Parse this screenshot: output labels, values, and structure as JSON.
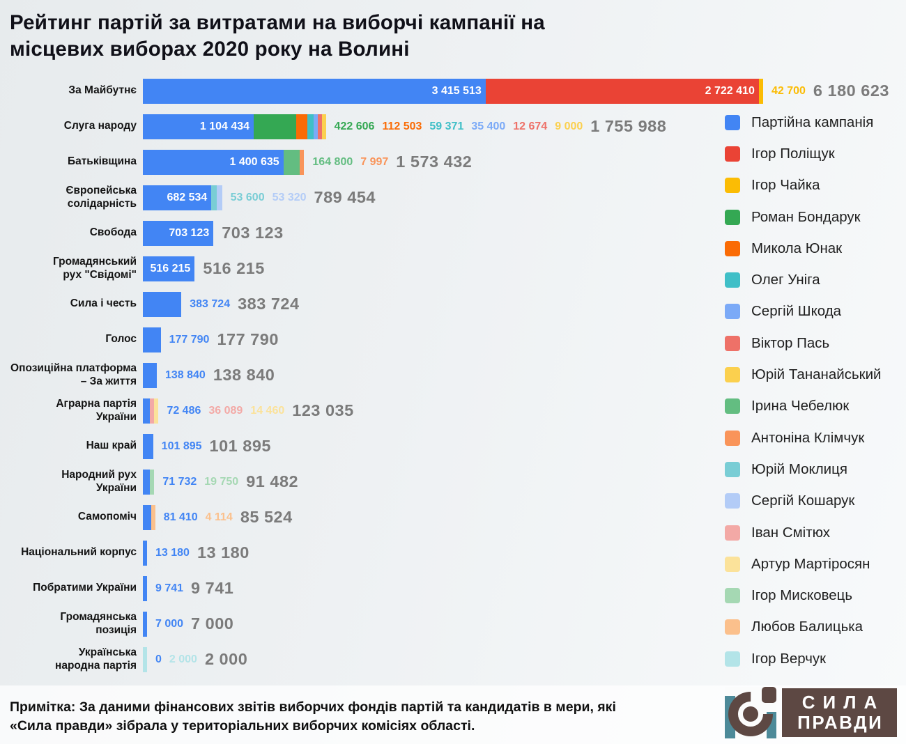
{
  "title": "Рейтинг партій за витратами на виборчі кампанії на\nмісцевих виборах 2020 року на Волині",
  "note": "Примітка: За даними фінансових звітів виборчих фондів партій та кандидатів в мери, які\n«Сила правди» зібрала у територіальних виборчих комісіях області.",
  "logo": {
    "line1": "СИЛА",
    "line2": "ПРАВДИ",
    "brand_brown": "#5d4843",
    "brand_teal": "#4d8a99"
  },
  "chart_data": {
    "type": "bar",
    "orientation": "horizontal",
    "stacked": true,
    "max_value": 6180623,
    "legend_position": "right",
    "legend": [
      {
        "label": "Партійна кампанія",
        "color": "#4285f4"
      },
      {
        "label": "Ігор Поліщук",
        "color": "#ea4335"
      },
      {
        "label": "Ігор Чайка",
        "color": "#fbbc04"
      },
      {
        "label": "Роман Бондарук",
        "color": "#34a853"
      },
      {
        "label": "Микола Юнак",
        "color": "#fa6b05"
      },
      {
        "label": "Олег Уніга",
        "color": "#3fbfc7"
      },
      {
        "label": "Сергій Шкода",
        "color": "#7baaf7"
      },
      {
        "label": "Віктор Пась",
        "color": "#ee7168"
      },
      {
        "label": "Юрій Тананайський",
        "color": "#fbd04e"
      },
      {
        "label": "Ірина Чебелюк",
        "color": "#63bd81"
      },
      {
        "label": "Антоніна Клімчук",
        "color": "#f9945a"
      },
      {
        "label": "Юрій Моклиця",
        "color": "#79cdd5"
      },
      {
        "label": "Сергій Кошарук",
        "color": "#b3ccf7"
      },
      {
        "label": "Іван Смітюх",
        "color": "#f3a9a6"
      },
      {
        "label": "Артур Мартіросян",
        "color": "#fbe29a"
      },
      {
        "label": "Ігор Мисковець",
        "color": "#a5d8b3"
      },
      {
        "label": "Любов Балицька",
        "color": "#fbc08c"
      },
      {
        "label": "Ігор Верчук",
        "color": "#b3e4e8"
      }
    ],
    "rows": [
      {
        "party": "За Майбутнє",
        "total": 6180623,
        "total_label": "6 180 623",
        "segments": [
          {
            "name": "Партійна кампанія",
            "value": 3415513,
            "label": "3 415 513",
            "color": "#4285f4"
          },
          {
            "name": "Ігор Поліщук",
            "value": 2722410,
            "label": "2 722 410",
            "color": "#ea4335"
          },
          {
            "name": "Ігор Чайка",
            "value": 42700,
            "label": "42 700",
            "color": "#fbbc04"
          }
        ]
      },
      {
        "party": "Слуга народу",
        "total": 1755988,
        "total_label": "1 755 988",
        "segments": [
          {
            "name": "Партійна кампанія",
            "value": 1104434,
            "label": "1 104 434",
            "color": "#4285f4"
          },
          {
            "name": "Роман Бондарук",
            "value": 422606,
            "label": "422 606",
            "color": "#34a853"
          },
          {
            "name": "Микола Юнак",
            "value": 112503,
            "label": "112 503",
            "color": "#fa6b05"
          },
          {
            "name": "Олег Уніга",
            "value": 59371,
            "label": "59 371",
            "color": "#3fbfc7"
          },
          {
            "name": "Сергій Шкода",
            "value": 35400,
            "label": "35 400",
            "color": "#7baaf7"
          },
          {
            "name": "Віктор Пась",
            "value": 12674,
            "label": "12 674",
            "color": "#ee7168"
          },
          {
            "name": "Юрій Тананайський",
            "value": 9000,
            "label": "9 000",
            "color": "#fbd04e"
          }
        ]
      },
      {
        "party": "Батьківщина",
        "total": 1573432,
        "total_label": "1 573 432",
        "segments": [
          {
            "name": "Партійна кампанія",
            "value": 1400635,
            "label": "1 400 635",
            "color": "#4285f4"
          },
          {
            "name": "Ірина Чебелюк",
            "value": 164800,
            "label": "164 800",
            "color": "#63bd81"
          },
          {
            "name": "Антоніна Клімчук",
            "value": 7997,
            "label": "7 997",
            "color": "#f9945a"
          }
        ]
      },
      {
        "party": "Європейська\nсолідарність",
        "total": 789454,
        "total_label": "789 454",
        "segments": [
          {
            "name": "Партійна кампанія",
            "value": 682534,
            "label": "682 534",
            "color": "#4285f4"
          },
          {
            "name": "Юрій Моклиця",
            "value": 53600,
            "label": "53 600",
            "color": "#79cdd5"
          },
          {
            "name": "Сергій Кошарук",
            "value": 53320,
            "label": "53 320",
            "color": "#b3ccf7"
          }
        ]
      },
      {
        "party": "Свобода",
        "total": 703123,
        "total_label": "703 123",
        "segments": [
          {
            "name": "Партійна кампанія",
            "value": 703123,
            "label": "703 123",
            "color": "#4285f4"
          }
        ]
      },
      {
        "party": "Громадянський\nрух \"Свідомі\"",
        "total": 516215,
        "total_label": "516 215",
        "segments": [
          {
            "name": "Партійна кампанія",
            "value": 516215,
            "label": "516 215",
            "color": "#4285f4"
          }
        ]
      },
      {
        "party": "Сила і честь",
        "total": 383724,
        "total_label": "383 724",
        "segments": [
          {
            "name": "Партійна кампанія",
            "value": 383724,
            "label": "383 724",
            "color": "#4285f4"
          }
        ]
      },
      {
        "party": "Голос",
        "total": 177790,
        "total_label": "177 790",
        "segments": [
          {
            "name": "Партійна кампанія",
            "value": 177790,
            "label": "177 790",
            "color": "#4285f4"
          }
        ]
      },
      {
        "party": "Опозиційна платформа\n– За життя",
        "total": 138840,
        "total_label": "138 840",
        "segments": [
          {
            "name": "Партійна кампанія",
            "value": 138840,
            "label": "138 840",
            "color": "#4285f4"
          }
        ]
      },
      {
        "party": "Аграрна партія\nУкраїни",
        "total": 123035,
        "total_label": "123 035",
        "segments": [
          {
            "name": "Партійна кампанія",
            "value": 72486,
            "label": "72 486",
            "color": "#4285f4"
          },
          {
            "name": "Іван Смітюх",
            "value": 36089,
            "label": "36 089",
            "color": "#f3a9a6"
          },
          {
            "name": "Артур Мартіросян",
            "value": 14460,
            "label": "14 460",
            "color": "#fbe29a"
          }
        ]
      },
      {
        "party": "Наш край",
        "total": 101895,
        "total_label": "101 895",
        "segments": [
          {
            "name": "Партійна кампанія",
            "value": 101895,
            "label": "101 895",
            "color": "#4285f4"
          }
        ]
      },
      {
        "party": "Народний рух\nУкраїни",
        "total": 91482,
        "total_label": "91 482",
        "segments": [
          {
            "name": "Партійна кампанія",
            "value": 71732,
            "label": "71 732",
            "color": "#4285f4"
          },
          {
            "name": "Ігор Мисковець",
            "value": 19750,
            "label": "19 750",
            "color": "#a5d8b3"
          }
        ]
      },
      {
        "party": "Самопоміч",
        "total": 85524,
        "total_label": "85 524",
        "segments": [
          {
            "name": "Партійна кампанія",
            "value": 81410,
            "label": "81 410",
            "color": "#4285f4"
          },
          {
            "name": "Любов Балицька",
            "value": 4114,
            "label": "4 114",
            "color": "#fbc08c"
          }
        ]
      },
      {
        "party": "Національний корпус",
        "total": 13180,
        "total_label": "13 180",
        "segments": [
          {
            "name": "Партійна кампанія",
            "value": 13180,
            "label": "13 180",
            "color": "#4285f4"
          }
        ]
      },
      {
        "party": "Побратими України",
        "total": 9741,
        "total_label": "9 741",
        "segments": [
          {
            "name": "Партійна кампанія",
            "value": 9741,
            "label": "9 741",
            "color": "#4285f4"
          }
        ]
      },
      {
        "party": "Громадянська\nпозиція",
        "total": 7000,
        "total_label": "7 000",
        "segments": [
          {
            "name": "Партійна кампанія",
            "value": 7000,
            "label": "7 000",
            "color": "#4285f4"
          }
        ]
      },
      {
        "party": "Українська\nнародна партія",
        "total": 2000,
        "total_label": "2 000",
        "segments": [
          {
            "name": "Партійна кампанія",
            "value": 0,
            "label": "0",
            "color": "#4285f4"
          },
          {
            "name": "Ігор Верчук",
            "value": 2000,
            "label": "2 000",
            "color": "#b3e4e8"
          }
        ]
      }
    ]
  }
}
